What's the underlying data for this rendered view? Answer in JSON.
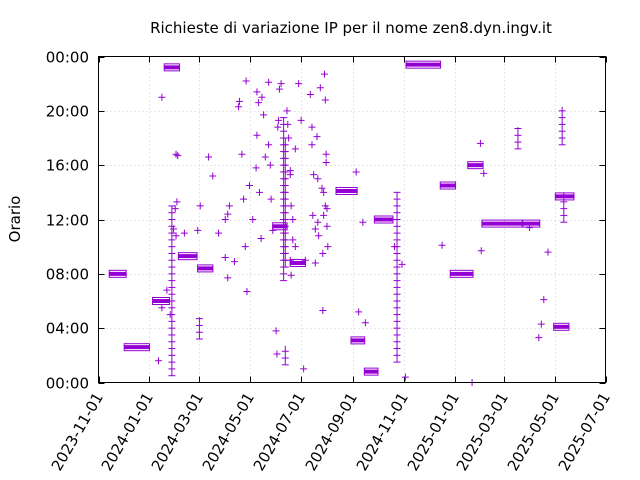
{
  "chart_data": {
    "type": "scatter",
    "title": "Richieste di variazione IP per il nome zen8.dyn.ingv.it",
    "ylabel": "Orario",
    "xlabel": "",
    "x_range": [
      "2023-11-01",
      "2025-07-01"
    ],
    "y_range_hours": [
      0,
      24
    ],
    "x_tick_labels": [
      "2023-11-01",
      "2024-01-01",
      "2024-03-01",
      "2024-05-01",
      "2024-07-01",
      "2024-09-01",
      "2024-11-01",
      "2025-01-01",
      "2025-03-01",
      "2025-05-01",
      "2025-07-01"
    ],
    "y_tick_labels": [
      "00:00",
      "04:00",
      "08:00",
      "12:00",
      "16:00",
      "20:00",
      "00:00"
    ],
    "grid": true,
    "legend": "none",
    "marker": "plus",
    "series_color": "#9400d3",
    "runs": [
      {
        "x_from": "2023-11-18",
        "x_to": "2023-11-30",
        "y": 8.0
      },
      {
        "x_from": "2023-12-06",
        "x_to": "2023-12-28",
        "y": 2.6
      },
      {
        "x_from": "2024-01-09",
        "x_to": "2024-01-21",
        "y": 6.0
      },
      {
        "x_from": "2024-01-23",
        "x_to": "2024-02-02",
        "y": 23.2
      },
      {
        "x_from": "2024-02-09",
        "x_to": "2024-02-23",
        "y": 9.3
      },
      {
        "x_from": "2024-03-03",
        "x_to": "2024-03-13",
        "y": 8.4
      },
      {
        "x_from": "2024-06-01",
        "x_to": "2024-06-10",
        "y": 11.5
      },
      {
        "x_from": "2024-06-22",
        "x_to": "2024-07-02",
        "y": 8.8
      },
      {
        "x_from": "2024-08-16",
        "x_to": "2024-09-02",
        "y": 14.1
      },
      {
        "x_from": "2024-09-03",
        "x_to": "2024-09-11",
        "y": 3.1
      },
      {
        "x_from": "2024-09-19",
        "x_to": "2024-09-27",
        "y": 0.8
      },
      {
        "x_from": "2024-10-01",
        "x_to": "2024-10-15",
        "y": 12.0
      },
      {
        "x_from": "2024-11-08",
        "x_to": "2024-12-11",
        "y": 23.4
      },
      {
        "x_from": "2024-12-19",
        "x_to": "2024-12-29",
        "y": 14.5
      },
      {
        "x_from": "2024-12-31",
        "x_to": "2025-01-19",
        "y": 8.0
      },
      {
        "x_from": "2025-01-21",
        "x_to": "2025-01-31",
        "y": 16.0
      },
      {
        "x_from": "2025-02-07",
        "x_to": "2025-03-19",
        "y": 11.7
      },
      {
        "x_from": "2025-03-28",
        "x_to": "2025-04-09",
        "y": 11.7
      },
      {
        "x_from": "2025-05-04",
        "x_to": "2025-05-14",
        "y": 4.1
      },
      {
        "x_from": "2025-05-06",
        "x_to": "2025-05-20",
        "y": 13.7
      }
    ],
    "columns": [
      {
        "x": "2024-01-28",
        "y_from": 0.5,
        "y_to": 13.0
      },
      {
        "x": "2024-10-24",
        "y_from": 1.5,
        "y_to": 14.0
      },
      {
        "x": "2024-06-10",
        "y_from": 7.5,
        "y_to": 19.5
      },
      {
        "x": "2024-06-12",
        "y_from": 8.5,
        "y_to": 18.0
      },
      {
        "x": "2025-05-10",
        "y_from": 17.5,
        "y_to": 20.3
      },
      {
        "x": "2025-05-12",
        "y_from": 11.8,
        "y_to": 14.0
      },
      {
        "x": "2024-03-01",
        "y_from": 3.2,
        "y_to": 4.8
      },
      {
        "x": "2025-03-18",
        "y_from": 17.2,
        "y_to": 18.8
      },
      {
        "x": "2024-06-12",
        "y_from": 1.3,
        "y_to": 2.7
      }
    ],
    "points": [
      {
        "x": "2024-01-16",
        "y": 21.0
      },
      {
        "x": "2024-01-12",
        "y": 1.6
      },
      {
        "x": "2024-01-16",
        "y": 5.5
      },
      {
        "x": "2024-01-22",
        "y": 6.8
      },
      {
        "x": "2024-01-26",
        "y": 5.0
      },
      {
        "x": "2024-02-02",
        "y": 16.8
      },
      {
        "x": "2024-02-04",
        "y": 16.7
      },
      {
        "x": "2024-02-01",
        "y": 12.8
      },
      {
        "x": "2024-02-03",
        "y": 13.3
      },
      {
        "x": "2024-01-30",
        "y": 11.3
      },
      {
        "x": "2024-02-02",
        "y": 10.8
      },
      {
        "x": "2024-02-12",
        "y": 11.0
      },
      {
        "x": "2024-03-02",
        "y": 13.0
      },
      {
        "x": "2024-02-28",
        "y": 11.2
      },
      {
        "x": "2024-03-12",
        "y": 16.6
      },
      {
        "x": "2024-03-17",
        "y": 15.2
      },
      {
        "x": "2024-03-24",
        "y": 11.0
      },
      {
        "x": "2024-04-01",
        "y": 9.2
      },
      {
        "x": "2024-04-01",
        "y": 12.0
      },
      {
        "x": "2024-04-04",
        "y": 12.4
      },
      {
        "x": "2024-04-06",
        "y": 13.0
      },
      {
        "x": "2024-04-04",
        "y": 7.7
      },
      {
        "x": "2024-04-12",
        "y": 8.9
      },
      {
        "x": "2024-04-17",
        "y": 20.3
      },
      {
        "x": "2024-04-18",
        "y": 20.7
      },
      {
        "x": "2024-04-21",
        "y": 16.8
      },
      {
        "x": "2024-04-23",
        "y": 13.5
      },
      {
        "x": "2024-04-25",
        "y": 10.0
      },
      {
        "x": "2024-04-26",
        "y": 22.2
      },
      {
        "x": "2024-04-27",
        "y": 6.7
      },
      {
        "x": "2024-04-30",
        "y": 14.5
      },
      {
        "x": "2024-05-04",
        "y": 12.0
      },
      {
        "x": "2024-05-08",
        "y": 15.8
      },
      {
        "x": "2024-05-09",
        "y": 21.4
      },
      {
        "x": "2024-05-11",
        "y": 20.6
      },
      {
        "x": "2024-05-09",
        "y": 18.2
      },
      {
        "x": "2024-05-12",
        "y": 14.0
      },
      {
        "x": "2024-05-14",
        "y": 10.6
      },
      {
        "x": "2024-05-15",
        "y": 21.0
      },
      {
        "x": "2024-05-17",
        "y": 19.7
      },
      {
        "x": "2024-05-19",
        "y": 16.6
      },
      {
        "x": "2024-05-23",
        "y": 22.1
      },
      {
        "x": "2024-05-23",
        "y": 17.5
      },
      {
        "x": "2024-05-25",
        "y": 16.0
      },
      {
        "x": "2024-05-26",
        "y": 13.5
      },
      {
        "x": "2024-05-28",
        "y": 11.2
      },
      {
        "x": "2024-06-01",
        "y": 3.8
      },
      {
        "x": "2024-06-02",
        "y": 2.1
      },
      {
        "x": "2024-06-03",
        "y": 18.8
      },
      {
        "x": "2024-06-04",
        "y": 19.3
      },
      {
        "x": "2024-06-05",
        "y": 21.6
      },
      {
        "x": "2024-06-07",
        "y": 22.0
      },
      {
        "x": "2024-06-14",
        "y": 20.0
      },
      {
        "x": "2024-06-15",
        "y": 19.0
      },
      {
        "x": "2024-06-16",
        "y": 18.0
      },
      {
        "x": "2024-06-18",
        "y": 15.3
      },
      {
        "x": "2024-06-18",
        "y": 15.6
      },
      {
        "x": "2024-06-19",
        "y": 13.0
      },
      {
        "x": "2024-06-21",
        "y": 12.0
      },
      {
        "x": "2024-06-21",
        "y": 10.5
      },
      {
        "x": "2024-06-18",
        "y": 9.0
      },
      {
        "x": "2024-06-19",
        "y": 7.9
      },
      {
        "x": "2024-06-24",
        "y": 17.2
      },
      {
        "x": "2024-06-24",
        "y": 10.0
      },
      {
        "x": "2024-06-28",
        "y": 22.0
      },
      {
        "x": "2024-07-01",
        "y": 19.3
      },
      {
        "x": "2024-07-04",
        "y": 1.0
      },
      {
        "x": "2024-07-06",
        "y": 9.0
      },
      {
        "x": "2024-07-12",
        "y": 21.2
      },
      {
        "x": "2024-07-14",
        "y": 18.8
      },
      {
        "x": "2024-07-14",
        "y": 17.5
      },
      {
        "x": "2024-07-16",
        "y": 15.3
      },
      {
        "x": "2024-07-15",
        "y": 12.3
      },
      {
        "x": "2024-07-18",
        "y": 11.3
      },
      {
        "x": "2024-07-18",
        "y": 8.8
      },
      {
        "x": "2024-07-20",
        "y": 18.1
      },
      {
        "x": "2024-07-21",
        "y": 15.0
      },
      {
        "x": "2024-07-21",
        "y": 11.8
      },
      {
        "x": "2024-07-22",
        "y": 10.8
      },
      {
        "x": "2024-07-24",
        "y": 21.7
      },
      {
        "x": "2024-07-26",
        "y": 14.3
      },
      {
        "x": "2024-07-28",
        "y": 14.0
      },
      {
        "x": "2024-07-28",
        "y": 12.3
      },
      {
        "x": "2024-07-27",
        "y": 9.5
      },
      {
        "x": "2024-07-29",
        "y": 22.7
      },
      {
        "x": "2024-07-30",
        "y": 20.8
      },
      {
        "x": "2024-07-31",
        "y": 16.8
      },
      {
        "x": "2024-07-31",
        "y": 16.2
      },
      {
        "x": "2024-07-30",
        "y": 13.0
      },
      {
        "x": "2024-08-01",
        "y": 12.8
      },
      {
        "x": "2024-08-01",
        "y": 11.5
      },
      {
        "x": "2024-08-02",
        "y": 10.0
      },
      {
        "x": "2024-07-27",
        "y": 5.3
      },
      {
        "x": "2024-09-05",
        "y": 15.5
      },
      {
        "x": "2024-09-08",
        "y": 5.2
      },
      {
        "x": "2024-09-13",
        "y": 11.8
      },
      {
        "x": "2024-09-16",
        "y": 4.4
      },
      {
        "x": "2024-10-21",
        "y": 10.0
      },
      {
        "x": "2024-10-30",
        "y": 8.7
      },
      {
        "x": "2024-11-03",
        "y": 0.4
      },
      {
        "x": "2024-12-17",
        "y": 10.1
      },
      {
        "x": "2025-01-22",
        "y": 0.0
      },
      {
        "x": "2025-02-01",
        "y": 17.6
      },
      {
        "x": "2025-02-02",
        "y": 9.7
      },
      {
        "x": "2025-02-05",
        "y": 15.4
      },
      {
        "x": "2025-04-01",
        "y": 11.4
      },
      {
        "x": "2025-04-12",
        "y": 3.3
      },
      {
        "x": "2025-04-15",
        "y": 4.3
      },
      {
        "x": "2025-04-18",
        "y": 6.1
      },
      {
        "x": "2025-04-23",
        "y": 9.6
      }
    ]
  }
}
